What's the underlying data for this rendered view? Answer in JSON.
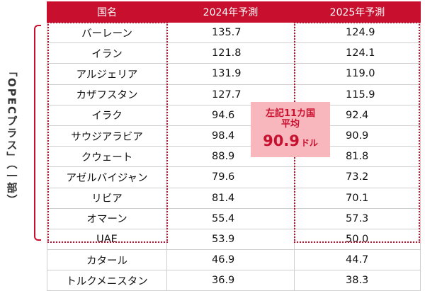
{
  "side_label": "「OPECプラス」（一部）",
  "headers": {
    "country": "国名",
    "y2024": "2024年予測",
    "y2025": "2025年予測"
  },
  "average_box": {
    "line1": "左記11カ国",
    "line2": "平均",
    "value": "90.9",
    "unit": "ドル"
  },
  "colors": {
    "accent": "#c8102e",
    "highlight": "#f7b7bd"
  },
  "chart_data": {
    "type": "table",
    "columns": [
      "国名",
      "2024年予測",
      "2025年予測"
    ],
    "rows": [
      {
        "country": "バーレーン",
        "y2024": "135.7",
        "y2025": "124.9"
      },
      {
        "country": "イラン",
        "y2024": "121.8",
        "y2025": "124.1"
      },
      {
        "country": "アルジェリア",
        "y2024": "131.9",
        "y2025": "119.0"
      },
      {
        "country": "カザフスタン",
        "y2024": "127.7",
        "y2025": "115.9"
      },
      {
        "country": "イラク",
        "y2024": "94.6",
        "y2025": "92.4"
      },
      {
        "country": "サウジアラビア",
        "y2024": "98.4",
        "y2025": "90.9"
      },
      {
        "country": "クウェート",
        "y2024": "88.9",
        "y2025": "81.8"
      },
      {
        "country": "アゼルバイジャン",
        "y2024": "79.6",
        "y2025": "73.2"
      },
      {
        "country": "リビア",
        "y2024": "81.4",
        "y2025": "70.1"
      },
      {
        "country": "オマーン",
        "y2024": "55.4",
        "y2025": "57.3"
      },
      {
        "country": "UAE",
        "y2024": "53.9",
        "y2025": "50.0"
      },
      {
        "country": "カタール",
        "y2024": "46.9",
        "y2025": "44.7"
      },
      {
        "country": "トルクメニスタン",
        "y2024": "36.9",
        "y2025": "38.3"
      }
    ]
  }
}
